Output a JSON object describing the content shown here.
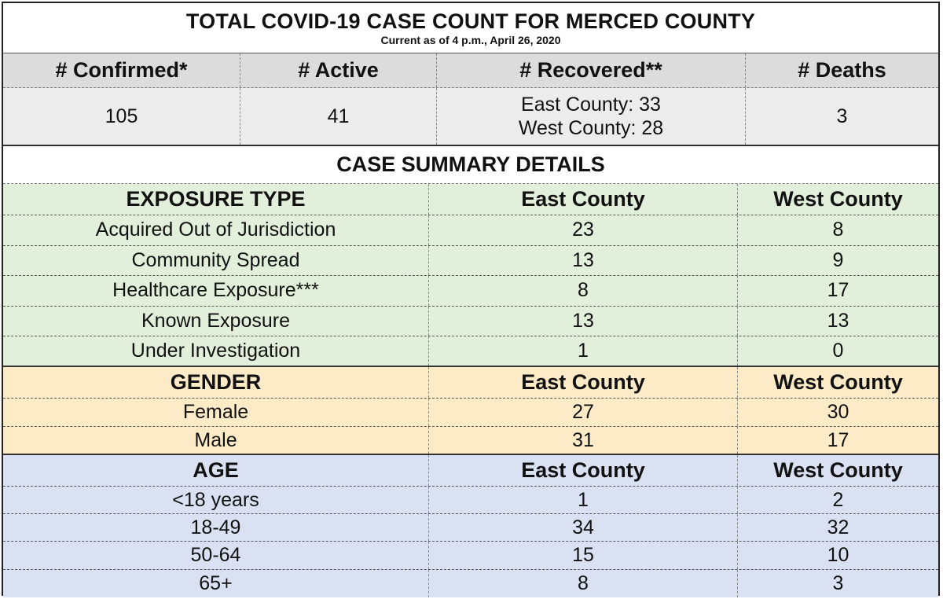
{
  "title": "TOTAL COVID-19 CASE COUNT FOR MERCED COUNTY",
  "subtitle": "Current as of 4 p.m., April 26, 2020",
  "totals": {
    "headers": [
      "# Confirmed*",
      "# Active",
      "# Recovered**",
      "# Deaths"
    ],
    "confirmed": "105",
    "active": "41",
    "recovered_east": "East County: 33",
    "recovered_west": "West County: 28",
    "deaths": "3"
  },
  "summary_title": "CASE SUMMARY DETAILS",
  "sections": {
    "exposure": {
      "header": "EXPOSURE TYPE",
      "east_label": "East County",
      "west_label": "West County",
      "color": "#e2efda",
      "rows": [
        {
          "label": "Acquired Out of Jurisdiction",
          "east": "23",
          "west": "8"
        },
        {
          "label": "Community Spread",
          "east": "13",
          "west": "9"
        },
        {
          "label": "Healthcare Exposure***",
          "east": "8",
          "west": "17"
        },
        {
          "label": "Known Exposure",
          "east": "13",
          "west": "13"
        },
        {
          "label": "Under Investigation",
          "east": "1",
          "west": "0"
        }
      ]
    },
    "gender": {
      "header": "GENDER",
      "east_label": "East County",
      "west_label": "West County",
      "color": "#fcebc6",
      "rows": [
        {
          "label": "Female",
          "east": "27",
          "west": "30"
        },
        {
          "label": "Male",
          "east": "31",
          "west": "17"
        }
      ]
    },
    "age": {
      "header": "AGE",
      "east_label": "East County",
      "west_label": "West County",
      "color": "#d9e1f2",
      "rows": [
        {
          "label": "<18 years",
          "east": "1",
          "west": "2"
        },
        {
          "label": "18-49",
          "east": "34",
          "west": "32"
        },
        {
          "label": "50-64",
          "east": "15",
          "west": "10"
        },
        {
          "label": "65+",
          "east": "8",
          "west": "3"
        }
      ]
    }
  }
}
